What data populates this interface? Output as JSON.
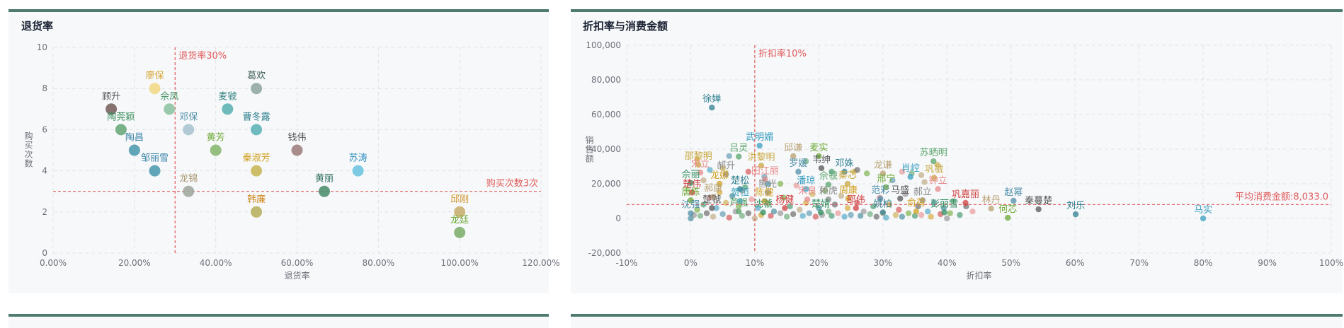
{
  "panels": {
    "left_title": "退货率",
    "right_title": "折扣率与消费金额"
  },
  "chart_data": [
    {
      "type": "scatter",
      "title": "退货率",
      "xlabel": "退货率",
      "ylabel": "购买次数",
      "xlim": [
        0,
        1.2
      ],
      "ylim": [
        0,
        10
      ],
      "x_ticks": [
        "0.00%",
        "20.00%",
        "40.00%",
        "60.00%",
        "80.00%",
        "100.00%",
        "120.00%"
      ],
      "y_ticks": [
        "0",
        "2",
        "4",
        "6",
        "8",
        "10"
      ],
      "grid": true,
      "mark_lines": [
        {
          "axis": "x",
          "value": 0.3,
          "label": "退货率30%",
          "color": "#e05a5a"
        },
        {
          "axis": "y",
          "value": 3,
          "label": "购买次数3次",
          "color": "#e05a5a"
        }
      ],
      "points": [
        {
          "name": "顾升",
          "x": 0.143,
          "y": 7,
          "color": "#7a6363",
          "label_color": "#555555"
        },
        {
          "name": "廖保",
          "x": 0.25,
          "y": 8,
          "color": "#f2d98a",
          "label_color": "#d8a530"
        },
        {
          "name": "佘凤",
          "x": 0.286,
          "y": 7,
          "color": "#8fc4a4",
          "label_color": "#3c8f5c"
        },
        {
          "name": "陶莞颖",
          "x": 0.167,
          "y": 6,
          "color": "#6aaa7a",
          "label_color": "#3c8f5c"
        },
        {
          "name": "陶昌",
          "x": 0.2,
          "y": 5,
          "color": "#4f9bb0",
          "label_color": "#3a85a8"
        },
        {
          "name": "邹丽雪",
          "x": 0.25,
          "y": 4,
          "color": "#4f9bb0",
          "label_color": "#3a85a8"
        },
        {
          "name": "邓保",
          "x": 0.333,
          "y": 6,
          "color": "#a8c4d0",
          "label_color": "#4f8fa8"
        },
        {
          "name": "龙锦",
          "x": 0.333,
          "y": 3,
          "color": "#a0a8a0",
          "label_color": "#a89870"
        },
        {
          "name": "麦虢",
          "x": 0.429,
          "y": 7,
          "color": "#5fb4b4",
          "label_color": "#2f7f7f"
        },
        {
          "name": "黄芳",
          "x": 0.4,
          "y": 5,
          "color": "#8ab870",
          "label_color": "#6aa830"
        },
        {
          "name": "葛欢",
          "x": 0.5,
          "y": 8,
          "color": "#90a8a0",
          "label_color": "#3f5f55"
        },
        {
          "name": "曹冬露",
          "x": 0.5,
          "y": 6,
          "color": "#5fb4b8",
          "label_color": "#2f7f8f"
        },
        {
          "name": "秦淑芳",
          "x": 0.5,
          "y": 4,
          "color": "#c8b85a",
          "label_color": "#d0a020"
        },
        {
          "name": "韩廉",
          "x": 0.5,
          "y": 2,
          "color": "#b8b060",
          "label_color": "#d08a20"
        },
        {
          "name": "钱伟",
          "x": 0.6,
          "y": 5,
          "color": "#a08080",
          "label_color": "#555555"
        },
        {
          "name": "黄丽",
          "x": 0.667,
          "y": 3,
          "color": "#4f9070",
          "label_color": "#2f6f5f"
        },
        {
          "name": "苏涛",
          "x": 0.75,
          "y": 4,
          "color": "#6ec4e0",
          "label_color": "#2f8fc0"
        },
        {
          "name": "邱刚",
          "x": 1.0,
          "y": 2,
          "color": "#c8b070",
          "label_color": "#d09a30"
        },
        {
          "name": "龙廷",
          "x": 1.0,
          "y": 1,
          "color": "#80b070",
          "label_color": "#6aa830"
        }
      ]
    },
    {
      "type": "scatter",
      "title": "折扣率与消费金额",
      "xlabel": "折扣率",
      "ylabel": "销售额",
      "xlim": [
        -0.1,
        1.0
      ],
      "ylim": [
        -20000,
        100000
      ],
      "x_ticks": [
        "-10%",
        "0%",
        "10%",
        "20%",
        "30%",
        "40%",
        "50%",
        "60%",
        "70%",
        "80%",
        "90%",
        "100%"
      ],
      "y_ticks": [
        "-20,000",
        "0",
        "20,000",
        "40,000",
        "60,000",
        "80,000",
        "100,000"
      ],
      "grid": true,
      "palette": [
        "#2f7f8f",
        "#3a9fc0",
        "#5aa46a",
        "#c8a840",
        "#e88a8a",
        "#8a8a8a",
        "#d0a020",
        "#2f8f5f",
        "#d04040",
        "#b8a070",
        "#6aa830",
        "#4f8fa8",
        "#555555"
      ],
      "mark_lines": [
        {
          "axis": "x",
          "value": 0.1,
          "label": "折扣率10%",
          "color": "#e05a5a"
        },
        {
          "axis": "y",
          "value": 8033,
          "label": "平均消费金额:8,033.0",
          "color": "#e05a5a"
        }
      ],
      "labeled_points": [
        {
          "name": "徐婵",
          "x": 0.033,
          "y": 64000
        },
        {
          "name": "武明媚",
          "x": 0.1075,
          "y": 42000
        },
        {
          "name": "吕灵",
          "x": 0.075,
          "y": 35700
        },
        {
          "name": "邵黎明",
          "x": 0.012,
          "y": 31000
        },
        {
          "name": "宋立",
          "x": 0.015,
          "y": 26500
        },
        {
          "name": "郝升",
          "x": 0.055,
          "y": 25500
        },
        {
          "name": "龙娜",
          "x": 0.045,
          "y": 20000
        },
        {
          "name": "佘丽",
          "x": 0.0,
          "y": 20500
        },
        {
          "name": "楚伟",
          "x": 0.002,
          "y": 15000
        },
        {
          "name": "郝康",
          "x": 0.035,
          "y": 12500
        },
        {
          "name": "唐栋",
          "x": 0.0,
          "y": 10500
        },
        {
          "name": "沈强",
          "x": 0.0,
          "y": 3000
        },
        {
          "name": "楚虢",
          "x": 0.033,
          "y": 6000
        },
        {
          "name": "楚松",
          "x": 0.077,
          "y": 17000
        },
        {
          "name": "贺恒",
          "x": 0.077,
          "y": 10000
        },
        {
          "name": "芦强",
          "x": 0.075,
          "y": 4000
        },
        {
          "name": "洪黎明",
          "x": 0.11,
          "y": 30500
        },
        {
          "name": "田江丽",
          "x": 0.116,
          "y": 22500
        },
        {
          "name": "熊光",
          "x": 0.12,
          "y": 15000
        },
        {
          "name": "陈健",
          "x": 0.115,
          "y": 10000
        },
        {
          "name": "沈虢",
          "x": 0.113,
          "y": 3500
        },
        {
          "name": "杨健",
          "x": 0.147,
          "y": 6000
        },
        {
          "name": "邱谦",
          "x": 0.16,
          "y": 36000
        },
        {
          "name": "麦实",
          "x": 0.2,
          "y": 36000
        },
        {
          "name": "罗媛",
          "x": 0.168,
          "y": 27000
        },
        {
          "name": "韦绅",
          "x": 0.204,
          "y": 29000
        },
        {
          "name": "邓姝",
          "x": 0.24,
          "y": 27000
        },
        {
          "name": "潘琼",
          "x": 0.18,
          "y": 17000
        },
        {
          "name": "佘虢",
          "x": 0.215,
          "y": 19500
        },
        {
          "name": "秦芯",
          "x": 0.245,
          "y": 20000
        },
        {
          "name": "宋良",
          "x": 0.182,
          "y": 11000
        },
        {
          "name": "赖虎",
          "x": 0.215,
          "y": 11000
        },
        {
          "name": "周康",
          "x": 0.246,
          "y": 11500
        },
        {
          "name": "楚婧",
          "x": 0.203,
          "y": 3500
        },
        {
          "name": "邵伟",
          "x": 0.258,
          "y": 6000
        },
        {
          "name": "龙谦",
          "x": 0.3,
          "y": 26000
        },
        {
          "name": "邢宁",
          "x": 0.305,
          "y": 18000
        },
        {
          "name": "范彩",
          "x": 0.296,
          "y": 11500
        },
        {
          "name": "马盛",
          "x": 0.327,
          "y": 11500
        },
        {
          "name": "姚柏",
          "x": 0.3,
          "y": 3500
        },
        {
          "name": "肖崆",
          "x": 0.343,
          "y": 24000
        },
        {
          "name": "苏晒明",
          "x": 0.379,
          "y": 33000
        },
        {
          "name": "巩虢",
          "x": 0.38,
          "y": 23500
        },
        {
          "name": "钟立",
          "x": 0.386,
          "y": 17000
        },
        {
          "name": "郝立",
          "x": 0.362,
          "y": 10500
        },
        {
          "name": "俞荷",
          "x": 0.352,
          "y": 4000
        },
        {
          "name": "彭丽雪",
          "x": 0.396,
          "y": 3500
        },
        {
          "name": "巩嘉丽",
          "x": 0.429,
          "y": 9000
        },
        {
          "name": "林丹",
          "x": 0.469,
          "y": 5700
        },
        {
          "name": "何芯",
          "x": 0.495,
          "y": 400
        },
        {
          "name": "赵幂",
          "x": 0.504,
          "y": 10200
        },
        {
          "name": "秦蔓楚",
          "x": 0.543,
          "y": 5300
        },
        {
          "name": "刘乐",
          "x": 0.601,
          "y": 2400
        },
        {
          "name": "马实",
          "x": 0.8,
          "y": 0
        }
      ],
      "unlabeled_points": [
        [
          0,
          0
        ],
        [
          0.005,
          2000
        ],
        [
          0.01,
          5000
        ],
        [
          0.015,
          1500
        ],
        [
          0.02,
          8000
        ],
        [
          0.025,
          3000
        ],
        [
          0.03,
          12000
        ],
        [
          0.035,
          1000
        ],
        [
          0.04,
          6000
        ],
        [
          0.045,
          15000
        ],
        [
          0.05,
          2500
        ],
        [
          0.055,
          9000
        ],
        [
          0.06,
          500
        ],
        [
          0.065,
          13000
        ],
        [
          0.07,
          4000
        ],
        [
          0.075,
          7000
        ],
        [
          0.08,
          1500
        ],
        [
          0.085,
          18000
        ],
        [
          0.09,
          3000
        ],
        [
          0.095,
          11000
        ],
        [
          0.1,
          0
        ],
        [
          0.105,
          6000
        ],
        [
          0.11,
          2000
        ],
        [
          0.115,
          24000
        ],
        [
          0.12,
          9000
        ],
        [
          0.125,
          1500
        ],
        [
          0.13,
          4000
        ],
        [
          0.14,
          3000
        ],
        [
          0.145,
          12000
        ],
        [
          0.15,
          1000
        ],
        [
          0.155,
          7000
        ],
        [
          0.16,
          2500
        ],
        [
          0.165,
          19000
        ],
        [
          0.17,
          5000
        ],
        [
          0.175,
          1500
        ],
        [
          0.18,
          9000
        ],
        [
          0.185,
          3000
        ],
        [
          0.19,
          14000
        ],
        [
          0.195,
          1000
        ],
        [
          0.2,
          6000
        ],
        [
          0.205,
          2000
        ],
        [
          0.21,
          16000
        ],
        [
          0.215,
          4000
        ],
        [
          0.22,
          1500
        ],
        [
          0.225,
          8000
        ],
        [
          0.23,
          3000
        ],
        [
          0.235,
          13000
        ],
        [
          0.24,
          1000
        ],
        [
          0.245,
          6000
        ],
        [
          0.25,
          2000
        ],
        [
          0.255,
          27000
        ],
        [
          0.26,
          9000
        ],
        [
          0.265,
          1500
        ],
        [
          0.27,
          4000
        ],
        [
          0.275,
          26000
        ],
        [
          0.28,
          2500
        ],
        [
          0.285,
          7000
        ],
        [
          0.29,
          1000
        ],
        [
          0.295,
          12000
        ],
        [
          0.3,
          3000
        ],
        [
          0.305,
          500
        ],
        [
          0.31,
          8000
        ],
        [
          0.315,
          22000
        ],
        [
          0.32,
          2000
        ],
        [
          0.325,
          5000
        ],
        [
          0.33,
          1000
        ],
        [
          0.335,
          14000
        ],
        [
          0.34,
          3000
        ],
        [
          0.345,
          26000
        ],
        [
          0.35,
          1500
        ],
        [
          0.355,
          7000
        ],
        [
          0.36,
          2000
        ],
        [
          0.365,
          21000
        ],
        [
          0.37,
          4000
        ],
        [
          0.375,
          1000
        ],
        [
          0.38,
          9000
        ],
        [
          0.385,
          31000
        ],
        [
          0.39,
          2500
        ],
        [
          0.395,
          6000
        ],
        [
          0.4,
          0
        ],
        [
          0.405,
          3000
        ],
        [
          0.41,
          10000
        ],
        [
          0.42,
          2000
        ],
        [
          0.43,
          7000
        ],
        [
          0.44,
          4000
        ],
        [
          0.02,
          22000
        ],
        [
          0.03,
          28000
        ],
        [
          0.01,
          34000
        ],
        [
          0.06,
          36000
        ],
        [
          0.05,
          29000
        ],
        [
          0.09,
          27000
        ],
        [
          0.12,
          20000
        ],
        [
          0.08,
          16000
        ],
        [
          0.14,
          20000
        ],
        [
          0.18,
          33000
        ],
        [
          0.22,
          27000
        ],
        [
          0.26,
          28000
        ],
        [
          0.33,
          27000
        ],
        [
          0.36,
          25000
        ]
      ]
    }
  ]
}
